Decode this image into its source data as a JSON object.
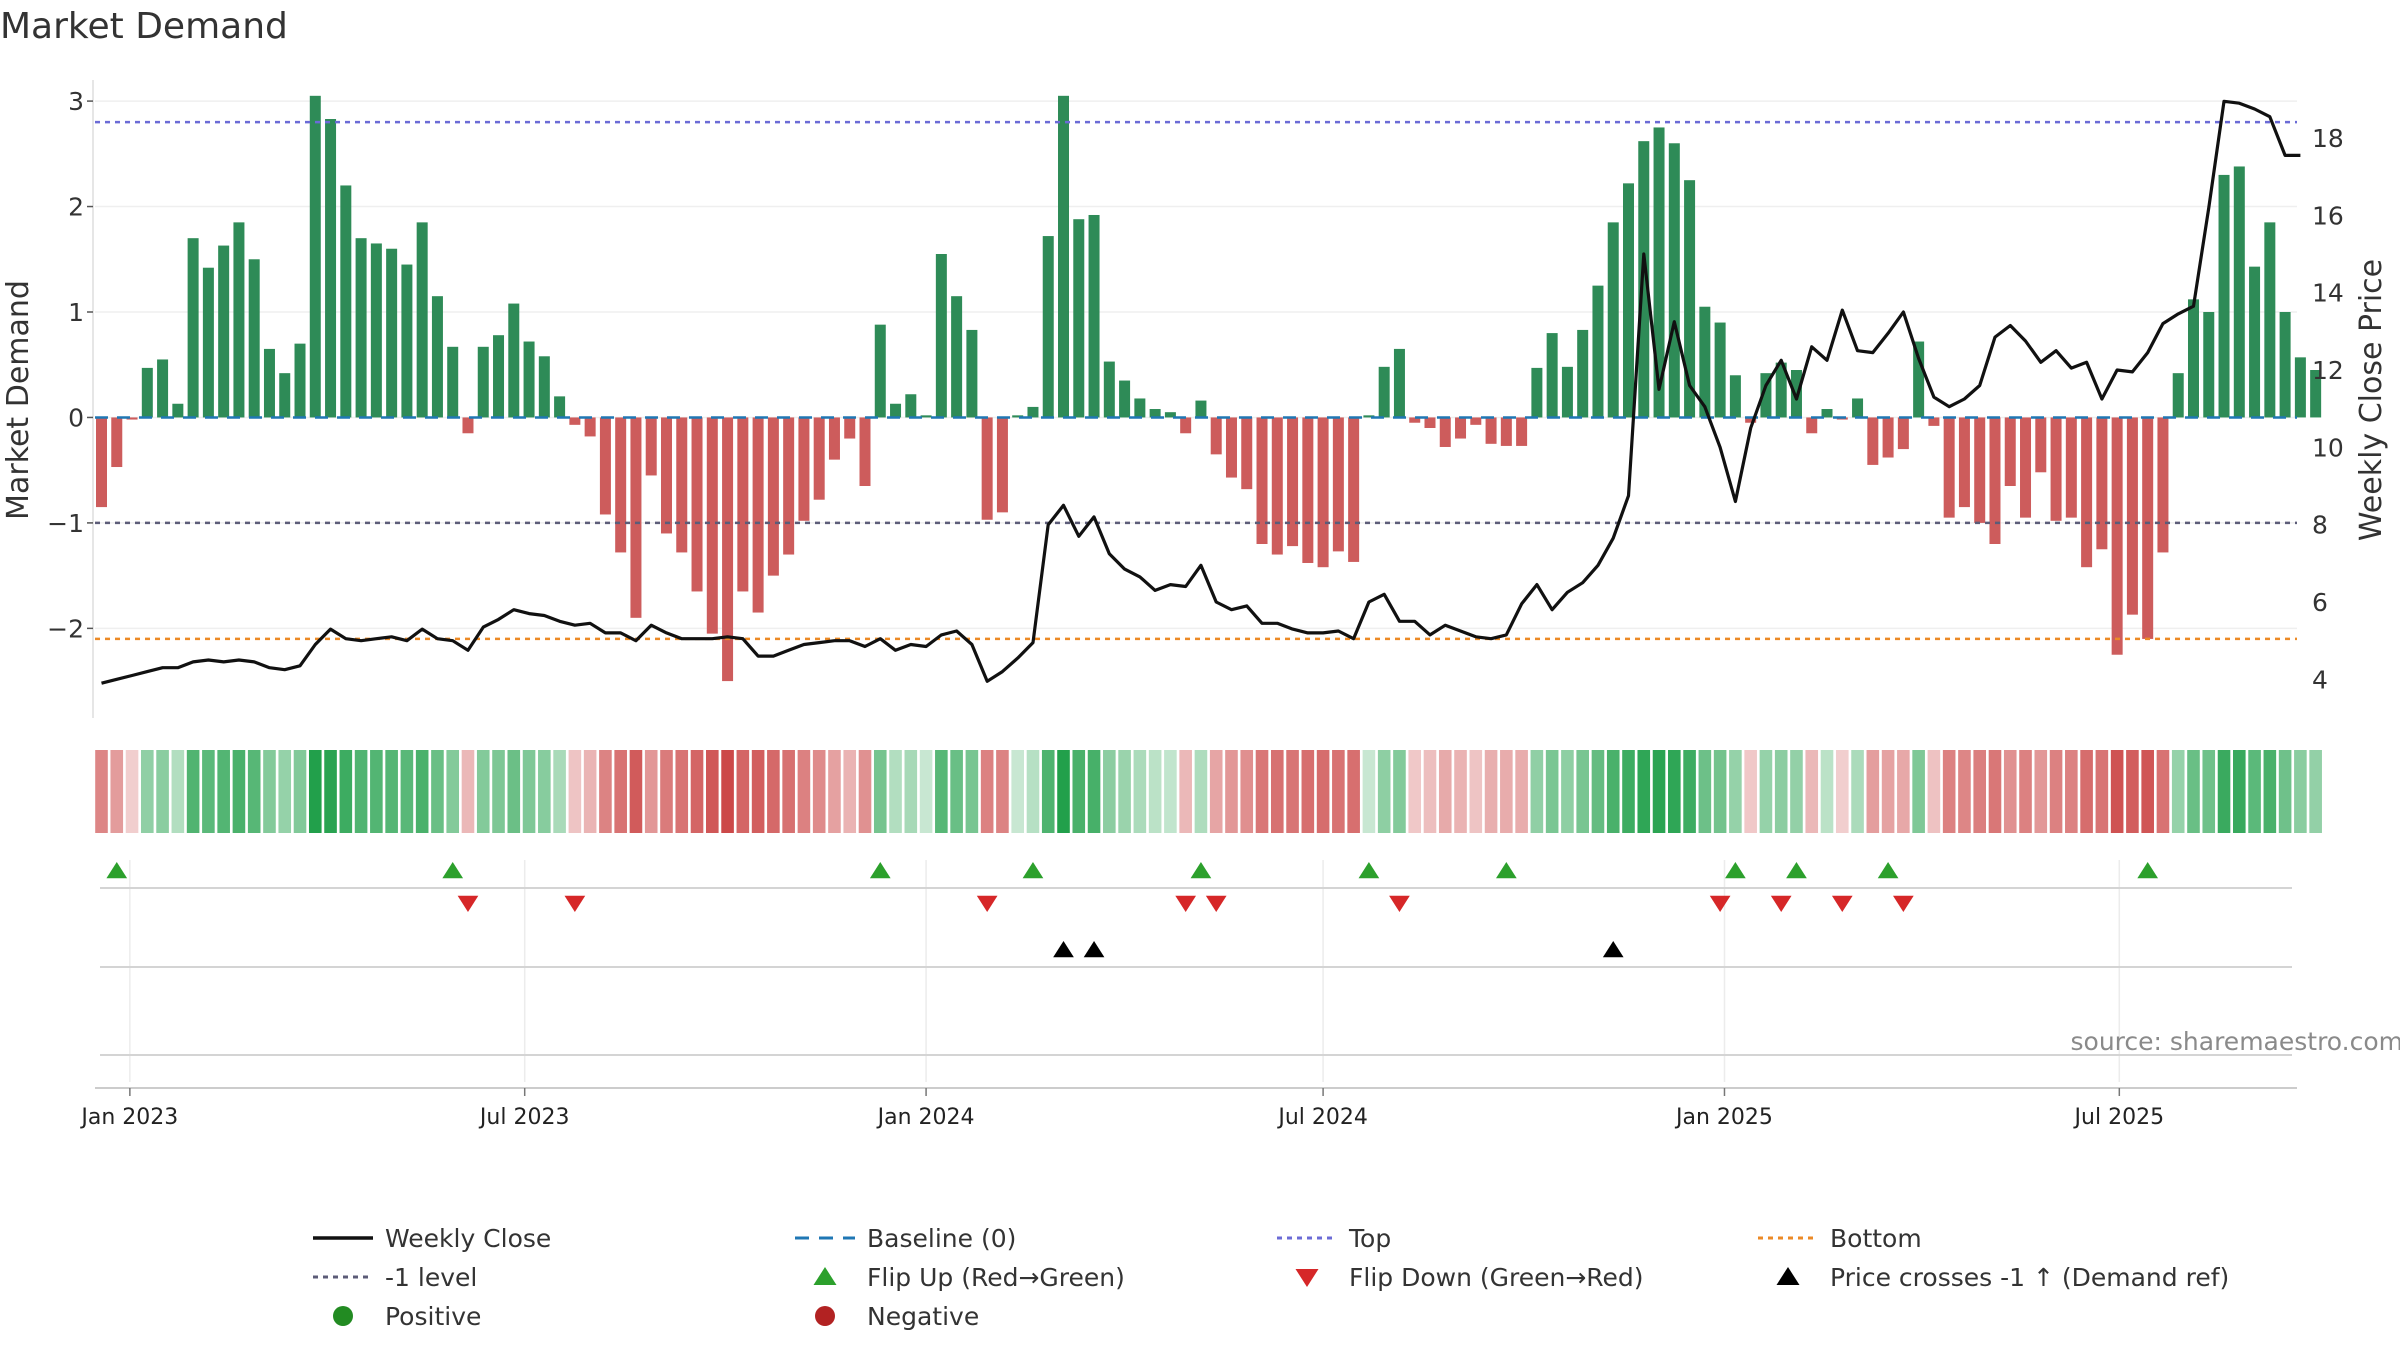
{
  "chart_data": {
    "type": "bar",
    "title": "Market Demand",
    "ylabel": "Market Demand",
    "y2label": "Weekly Close Price",
    "ylim": [
      -2.85,
      3.2
    ],
    "y2lim": [
      3.0,
      19.5
    ],
    "yticks": [
      3,
      2,
      1,
      0,
      -1,
      -2
    ],
    "ytick_labels": [
      "3",
      "2",
      "1",
      "0",
      "−1",
      "−2"
    ],
    "y2ticks": [
      18,
      16,
      14,
      12,
      10,
      8,
      6,
      4
    ],
    "x_start": "2022-12-19",
    "x_step_days": 7,
    "x_ticks": [
      {
        "label": "Jan 2023",
        "date": "2023-01-01"
      },
      {
        "label": "Jul 2023",
        "date": "2023-07-01"
      },
      {
        "label": "Jan 2024",
        "date": "2024-01-01"
      },
      {
        "label": "Jul 2024",
        "date": "2024-07-01"
      },
      {
        "label": "Jan 2025",
        "date": "2025-01-01"
      },
      {
        "label": "Jul 2025",
        "date": "2025-07-01"
      }
    ],
    "reference_lines": {
      "top": 2.8,
      "minus_one": -1,
      "bottom": -2.1,
      "baseline": 0
    },
    "demand": [
      -0.85,
      -0.47,
      -0.02,
      0.47,
      0.55,
      0.13,
      1.7,
      1.42,
      1.63,
      1.85,
      1.5,
      0.65,
      0.42,
      0.7,
      3.05,
      2.83,
      2.2,
      1.7,
      1.65,
      1.6,
      1.45,
      1.85,
      1.15,
      0.67,
      -0.15,
      0.67,
      0.78,
      1.08,
      0.72,
      0.58,
      0.2,
      -0.07,
      -0.18,
      -0.92,
      -1.28,
      -1.9,
      -0.55,
      -1.1,
      -1.28,
      -1.65,
      -2.05,
      -2.5,
      -1.65,
      -1.85,
      -1.5,
      -1.3,
      -0.98,
      -0.78,
      -0.4,
      -0.2,
      -0.65,
      0.88,
      0.13,
      0.22,
      0.02,
      1.55,
      1.15,
      0.83,
      -0.97,
      -0.9,
      0.02,
      0.1,
      1.72,
      3.05,
      1.88,
      1.92,
      0.53,
      0.35,
      0.18,
      0.08,
      0.05,
      -0.15,
      0.16,
      -0.35,
      -0.57,
      -0.68,
      -1.2,
      -1.3,
      -1.22,
      -1.38,
      -1.42,
      -1.27,
      -1.37,
      0.02,
      0.48,
      0.65,
      -0.05,
      -0.1,
      -0.28,
      -0.2,
      -0.07,
      -0.25,
      -0.27,
      -0.27,
      0.47,
      0.8,
      0.48,
      0.83,
      1.25,
      1.85,
      2.22,
      2.62,
      2.75,
      2.6,
      2.25,
      1.05,
      0.9,
      0.4,
      -0.05,
      0.42,
      0.52,
      0.45,
      -0.15,
      0.08,
      -0.02,
      0.18,
      -0.45,
      -0.38,
      -0.3,
      0.72,
      -0.08,
      -0.95,
      -0.85,
      -1.0,
      -1.2,
      -0.65,
      -0.95,
      -0.52,
      -0.98,
      -0.95,
      -1.42,
      -1.25,
      -2.25,
      -1.87,
      -2.1,
      -1.28,
      0.42,
      1.12,
      1.0,
      2.3,
      2.38,
      1.43,
      1.85,
      1.0,
      0.57,
      0.45
    ],
    "weekly_close": [
      3.9,
      4.0,
      4.1,
      4.2,
      4.3,
      4.3,
      4.45,
      4.5,
      4.45,
      4.5,
      4.45,
      4.3,
      4.25,
      4.35,
      4.9,
      5.3,
      5.05,
      5.0,
      5.05,
      5.1,
      5.0,
      5.3,
      5.05,
      5.0,
      4.75,
      5.35,
      5.55,
      5.8,
      5.7,
      5.65,
      5.5,
      5.4,
      5.45,
      5.2,
      5.2,
      5.0,
      5.4,
      5.2,
      5.05,
      5.05,
      5.05,
      5.1,
      5.05,
      4.6,
      4.6,
      4.75,
      4.9,
      4.95,
      5.0,
      5.0,
      4.85,
      5.05,
      4.75,
      4.9,
      4.85,
      5.15,
      5.25,
      4.9,
      3.95,
      4.2,
      4.55,
      4.95,
      8.0,
      8.5,
      7.7,
      8.2,
      7.25,
      6.85,
      6.65,
      6.3,
      6.45,
      6.4,
      6.95,
      6.0,
      5.8,
      5.9,
      5.45,
      5.45,
      5.3,
      5.2,
      5.2,
      5.25,
      5.05,
      6.0,
      6.2,
      5.5,
      5.5,
      5.15,
      5.4,
      5.25,
      5.1,
      5.05,
      5.15,
      5.95,
      6.45,
      5.8,
      6.25,
      6.5,
      6.95,
      7.65,
      8.75,
      15.0,
      11.5,
      13.25,
      11.6,
      11.05,
      10.0,
      8.6,
      10.5,
      11.6,
      12.25,
      11.25,
      12.6,
      12.25,
      13.55,
      12.5,
      12.45,
      12.95,
      13.5,
      12.3,
      11.3,
      11.05,
      11.25,
      11.6,
      12.85,
      13.15,
      12.75,
      12.2,
      12.5,
      12.05,
      12.2,
      11.25,
      12.0,
      11.95,
      12.45,
      13.2,
      13.45,
      13.65,
      16.2,
      18.95,
      18.9,
      18.75,
      18.55,
      17.55,
      17.55
    ],
    "flip_up_weeks": [
      1,
      23,
      51,
      61,
      72,
      83,
      92,
      107,
      111,
      117,
      134
    ],
    "flip_down_weeks": [
      24,
      31,
      58,
      71,
      73,
      85,
      106,
      110,
      114,
      118
    ],
    "price_cross_weeks": [
      63,
      65,
      99
    ],
    "legend": [
      {
        "label": "Weekly Close",
        "symbol": "line-solid",
        "color": "#111111"
      },
      {
        "label": "Baseline (0)",
        "symbol": "line-dash",
        "color": "#1f77b4"
      },
      {
        "label": "Top",
        "symbol": "line-dot",
        "color": "#6b6bd6"
      },
      {
        "label": "Bottom",
        "symbol": "line-dot",
        "color": "#ec8a26"
      },
      {
        "label": "-1 level",
        "symbol": "line-dot",
        "color": "#5c5c78"
      },
      {
        "label": "Flip Up (Red→Green)",
        "symbol": "triangle-up",
        "color": "#2ca02c"
      },
      {
        "label": "Flip Down (Green→Red)",
        "symbol": "triangle-down",
        "color": "#d62728"
      },
      {
        "label": "Price crosses -1 ↑ (Demand ref)",
        "symbol": "triangle-up",
        "color": "#000000"
      },
      {
        "label": "Positive",
        "symbol": "circle",
        "color": "#228b22"
      },
      {
        "label": "Negative",
        "symbol": "circle",
        "color": "#b22222"
      }
    ],
    "colors": {
      "positive_bar": "#2e8b57",
      "negative_bar": "#cd5c5c",
      "weekly_close": "#111111",
      "baseline": "#1f77b4",
      "top": "#6b6bd6",
      "bottom": "#ec8a26",
      "minus_one": "#5c5c78",
      "flip_up": "#2ca02c",
      "flip_down": "#d62728",
      "price_cross": "#000000"
    },
    "source": "source: sharemaestro.com"
  }
}
